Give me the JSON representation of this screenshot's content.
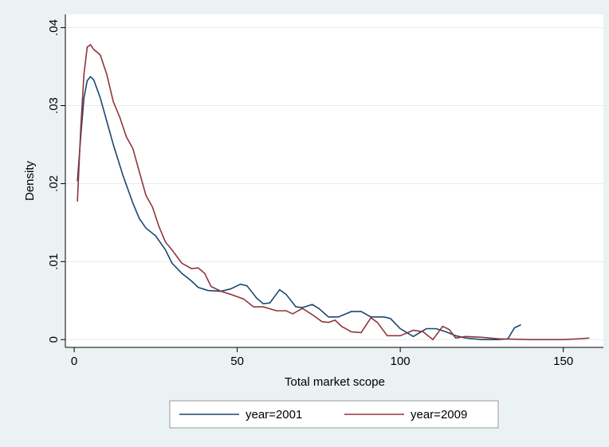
{
  "chart_data": {
    "type": "line",
    "xlabel": "Total market scope",
    "ylabel": "Density",
    "xlim": [
      -2.7,
      162.3
    ],
    "xticks": [
      0,
      50,
      100,
      150
    ],
    "ylim": [
      -0.001,
      0.0417
    ],
    "yticks": [
      0,
      {
        "value": 0.01,
        "label": ".01"
      },
      {
        "value": 0.02,
        "label": ".02"
      },
      {
        "value": 0.03,
        "label": ".03"
      },
      {
        "value": 0.04,
        "label": ".04"
      }
    ],
    "grid": true,
    "legend": "bottom",
    "series": [
      {
        "name": "year=2001",
        "color": "#1a476f",
        "x": [
          1,
          2,
          3,
          4,
          5,
          6,
          8,
          10,
          12,
          15,
          18,
          20,
          22,
          25,
          28,
          30,
          33,
          36,
          38,
          41,
          45,
          48,
          51,
          53,
          56,
          58,
          60,
          63,
          65,
          68,
          70,
          73,
          75,
          78,
          81,
          85,
          88,
          91,
          95,
          97,
          100,
          104,
          108,
          111,
          114,
          117,
          120,
          125,
          130,
          133,
          135,
          137
        ],
        "values": [
          0.0203,
          0.026,
          0.031,
          0.0332,
          0.0337,
          0.0333,
          0.031,
          0.028,
          0.025,
          0.021,
          0.0175,
          0.0155,
          0.0143,
          0.0133,
          0.0115,
          0.0098,
          0.0085,
          0.0075,
          0.0067,
          0.0063,
          0.0062,
          0.0065,
          0.0071,
          0.0069,
          0.0053,
          0.0046,
          0.0047,
          0.0064,
          0.0058,
          0.0042,
          0.0041,
          0.0045,
          0.004,
          0.0029,
          0.0029,
          0.0036,
          0.0036,
          0.0029,
          0.0029,
          0.0027,
          0.0014,
          0.0004,
          0.0014,
          0.0014,
          0.001,
          0.0005,
          0.0002,
          0,
          0,
          0.0001,
          0.0015,
          0.0019
        ]
      },
      {
        "name": "year=2009",
        "color": "#90353b",
        "x": [
          1,
          2,
          3,
          4,
          5,
          6,
          8,
          10,
          12,
          14,
          16,
          18,
          20,
          22,
          24,
          26,
          28,
          30,
          33,
          36,
          38,
          40,
          42,
          45,
          48,
          52,
          55,
          58,
          62,
          65,
          67,
          70,
          73,
          76,
          78,
          80,
          82,
          85,
          88,
          91,
          93,
          96,
          100,
          104,
          107,
          110,
          113,
          115,
          117,
          120,
          125,
          130,
          140,
          150,
          155,
          158
        ],
        "values": [
          0.0177,
          0.027,
          0.034,
          0.0375,
          0.0378,
          0.0372,
          0.0365,
          0.034,
          0.0305,
          0.0285,
          0.026,
          0.0245,
          0.0215,
          0.0185,
          0.017,
          0.0145,
          0.0125,
          0.0115,
          0.0098,
          0.0091,
          0.0092,
          0.0085,
          0.0068,
          0.0062,
          0.0058,
          0.0052,
          0.0042,
          0.0042,
          0.0037,
          0.0037,
          0.0033,
          0.004,
          0.0032,
          0.0023,
          0.0022,
          0.0025,
          0.0017,
          0.001,
          0.0009,
          0.0028,
          0.0022,
          0.0005,
          0.0005,
          0.0012,
          0.001,
          0,
          0.0017,
          0.0013,
          0.0002,
          0.0004,
          0.0003,
          0.0001,
          0,
          0,
          0.0001,
          0.0002
        ]
      }
    ]
  }
}
